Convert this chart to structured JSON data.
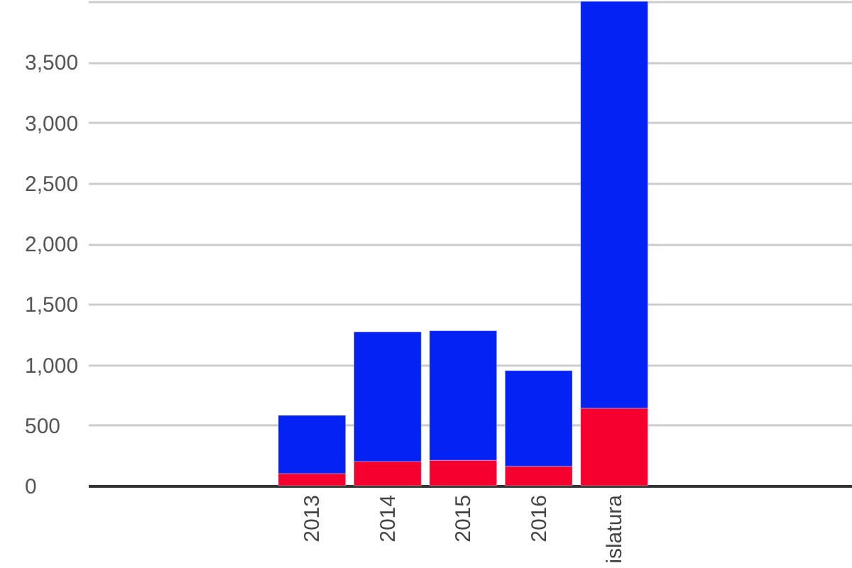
{
  "chart_data": {
    "type": "bar",
    "stacked": true,
    "grid": "y",
    "categories": [
      null,
      null,
      "2013",
      "2014",
      "2015",
      "2016",
      "islatura",
      null,
      null
    ],
    "series": [
      {
        "color": "#f5002f",
        "values": [
          null,
          null,
          100,
          200,
          210,
          160,
          640,
          null,
          null
        ]
      },
      {
        "color": "#0522f5",
        "values": [
          null,
          null,
          480,
          1070,
          1070,
          790,
          3360,
          null,
          null
        ]
      }
    ],
    "ylim": [
      0,
      4000
    ],
    "yticks": [
      0,
      500,
      {
        "value": 1000,
        "label": "1,000"
      },
      {
        "value": 1500,
        "label": "1,500"
      },
      {
        "value": 2000,
        "label": "2,000"
      },
      {
        "value": 2500,
        "label": "2,500"
      },
      {
        "value": 3000,
        "label": "3,000"
      },
      {
        "value": 3500,
        "label": "3,500"
      },
      {
        "value": 4000,
        "label": null
      }
    ]
  }
}
